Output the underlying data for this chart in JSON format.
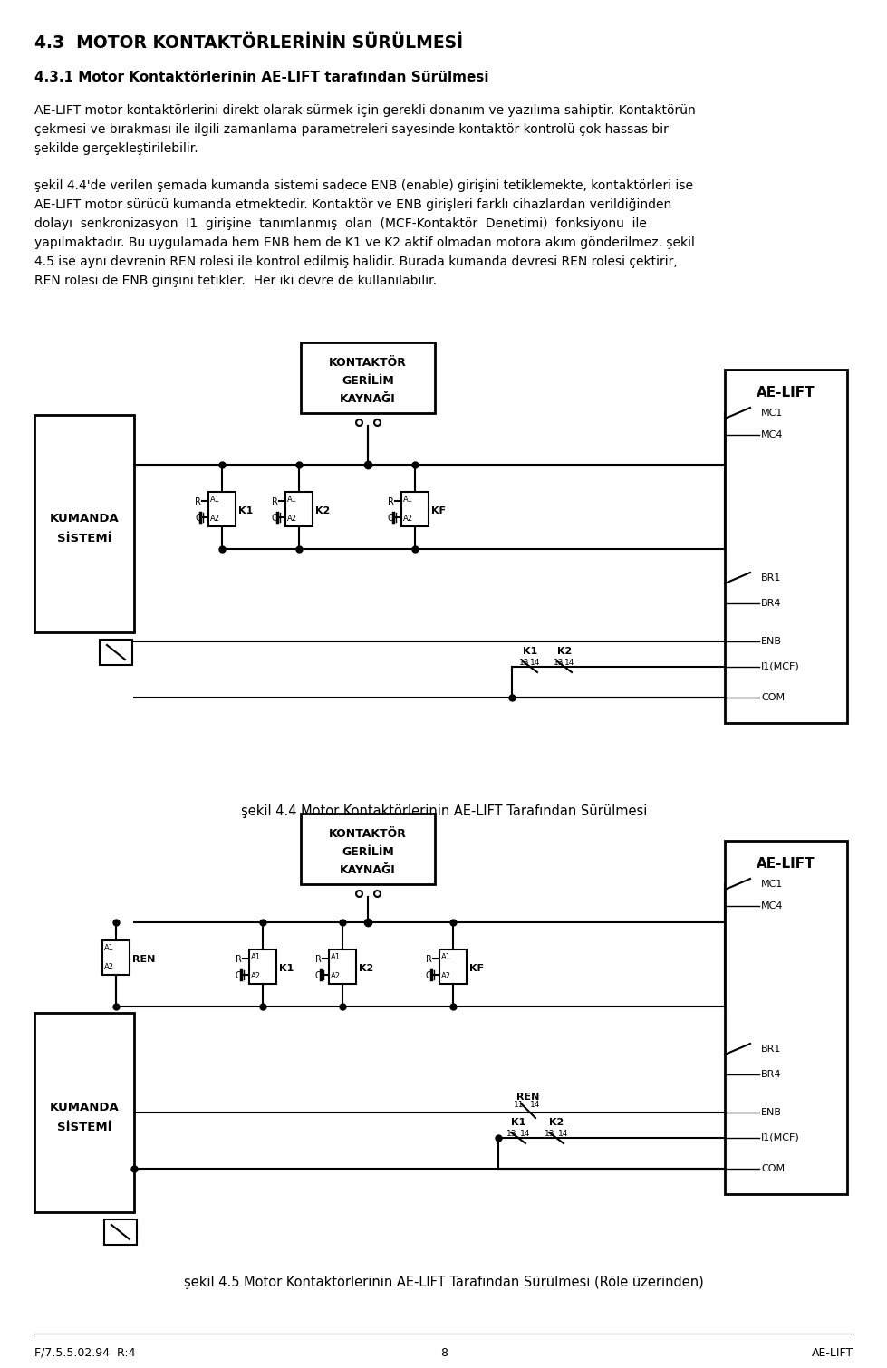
{
  "title1": "4.3  MOTOR KONTAKTÖRLERİNİN SÜRÜLMESİ",
  "subtitle1": "4.3.1 Motor Kontaktörlerinin AE-LIFT tarafından Sürülmesi",
  "para1_lines": [
    "AE-LIFT motor kontaktörlerini direkt olarak sürmek için gerekli donanım ve yazılıma sahiptir. Kontaktörün",
    "çekmesi ve bırakması ile ilgili zamanlama parametreleri sayesinde kontaktör kontrolü çok hassas bir",
    "şekilde gerçekleştirilebilir."
  ],
  "para2_lines": [
    "şekil 4.4'de verilen şemada kumanda sistemi sadece ENB (enable) girişini tetiklemekte, kontaktörleri ise",
    "AE-LIFT motor sürücü kumanda etmektedir. Kontaktör ve ENB girişleri farklı cihazlardan verildiğinden",
    "dolayı  senkronizasyon  I1  girişine  tanımlanmış  olan  (MCF-Kontaktör  Denetimi)  fonksiyonu  ile",
    "yapılmaktadır. Bu uygulamada hem ENB hem de K1 ve K2 aktif olmadan motora akım gönderilmez. şekil",
    "4.5 ise aynı devrenin REN rolesi ile kontrol edilmiş halidir. Burada kumanda devresi REN rolesi çektirir,",
    "REN rolesi de ENB girişini tetikler.  Her iki devre de kullanılabilir."
  ],
  "fig44_caption": "şekil 4.4 Motor Kontaktörlerinin AE-LIFT Tarafından Sürülmesi",
  "fig45_caption": "şekil 4.5 Motor Kontaktörlerinin AE-LIFT Tarafından Sürülmesi (Röle üzerinden)",
  "footer_left": "F/7.5.5.02.94  R:4",
  "footer_center": "8",
  "footer_right": "AE-LIFT",
  "bg_color": "#ffffff",
  "text_color": "#000000"
}
